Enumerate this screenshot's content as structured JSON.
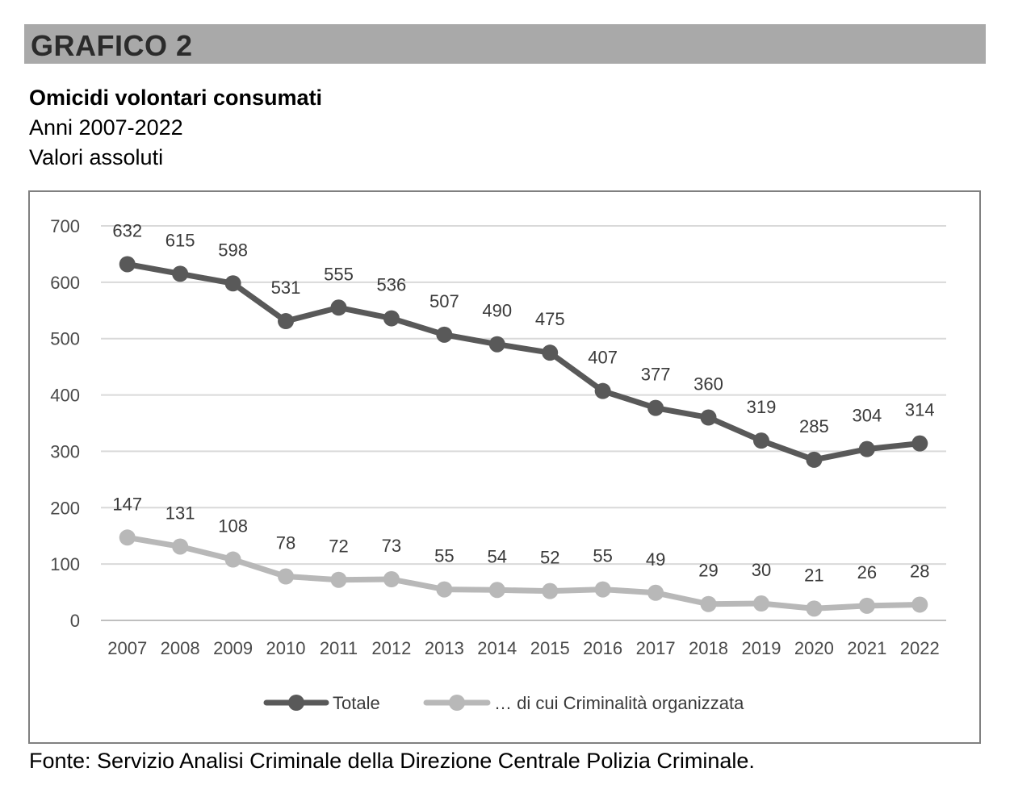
{
  "header": {
    "banner": "GRAFICO 2",
    "title": "Omicidi volontari consumati",
    "subtitle_years": "Anni 2007-2022",
    "subtitle_units": "Valori assoluti"
  },
  "footer": {
    "source": "Fonte: Servizio Analisi Criminale della Direzione Centrale Polizia Criminale."
  },
  "chart_data": {
    "type": "line",
    "title": "Omicidi volontari consumati",
    "xlabel": "",
    "ylabel": "",
    "ylim": [
      0,
      700
    ],
    "yticks": [
      0,
      100,
      200,
      300,
      400,
      500,
      600,
      700
    ],
    "grid": true,
    "legend_position": "bottom",
    "categories": [
      "2007",
      "2008",
      "2009",
      "2010",
      "2011",
      "2012",
      "2013",
      "2014",
      "2015",
      "2016",
      "2017",
      "2018",
      "2019",
      "2020",
      "2021",
      "2022"
    ],
    "series": [
      {
        "name": "Totale",
        "color": "#595959",
        "values": [
          632,
          615,
          598,
          531,
          555,
          536,
          507,
          490,
          475,
          407,
          377,
          360,
          319,
          285,
          304,
          314
        ]
      },
      {
        "name": "… di cui Criminalità organizzata",
        "color": "#b8b8b8",
        "values": [
          147,
          131,
          108,
          78,
          72,
          73,
          55,
          54,
          52,
          55,
          49,
          29,
          30,
          21,
          26,
          28
        ]
      }
    ]
  }
}
